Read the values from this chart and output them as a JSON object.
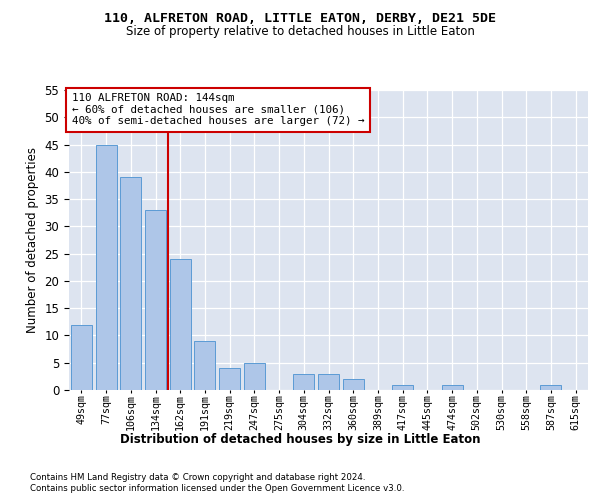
{
  "title1": "110, ALFRETON ROAD, LITTLE EATON, DERBY, DE21 5DE",
  "title2": "Size of property relative to detached houses in Little Eaton",
  "xlabel": "Distribution of detached houses by size in Little Eaton",
  "ylabel": "Number of detached properties",
  "categories": [
    "49sqm",
    "77sqm",
    "106sqm",
    "134sqm",
    "162sqm",
    "191sqm",
    "219sqm",
    "247sqm",
    "275sqm",
    "304sqm",
    "332sqm",
    "360sqm",
    "389sqm",
    "417sqm",
    "445sqm",
    "474sqm",
    "502sqm",
    "530sqm",
    "558sqm",
    "587sqm",
    "615sqm"
  ],
  "values": [
    12,
    45,
    39,
    33,
    24,
    9,
    4,
    5,
    0,
    3,
    3,
    2,
    0,
    1,
    0,
    1,
    0,
    0,
    0,
    1,
    0
  ],
  "bar_color": "#aec6e8",
  "bar_edge_color": "#5b9bd5",
  "annotation_text": "110 ALFRETON ROAD: 144sqm\n← 60% of detached houses are smaller (106)\n40% of semi-detached houses are larger (72) →",
  "annotation_box_color": "#ffffff",
  "annotation_box_edge": "#cc0000",
  "red_line_color": "#cc0000",
  "footer1": "Contains HM Land Registry data © Crown copyright and database right 2024.",
  "footer2": "Contains public sector information licensed under the Open Government Licence v3.0.",
  "ylim": [
    0,
    55
  ],
  "bg_color": "#dde4f0",
  "grid_color": "#ffffff"
}
